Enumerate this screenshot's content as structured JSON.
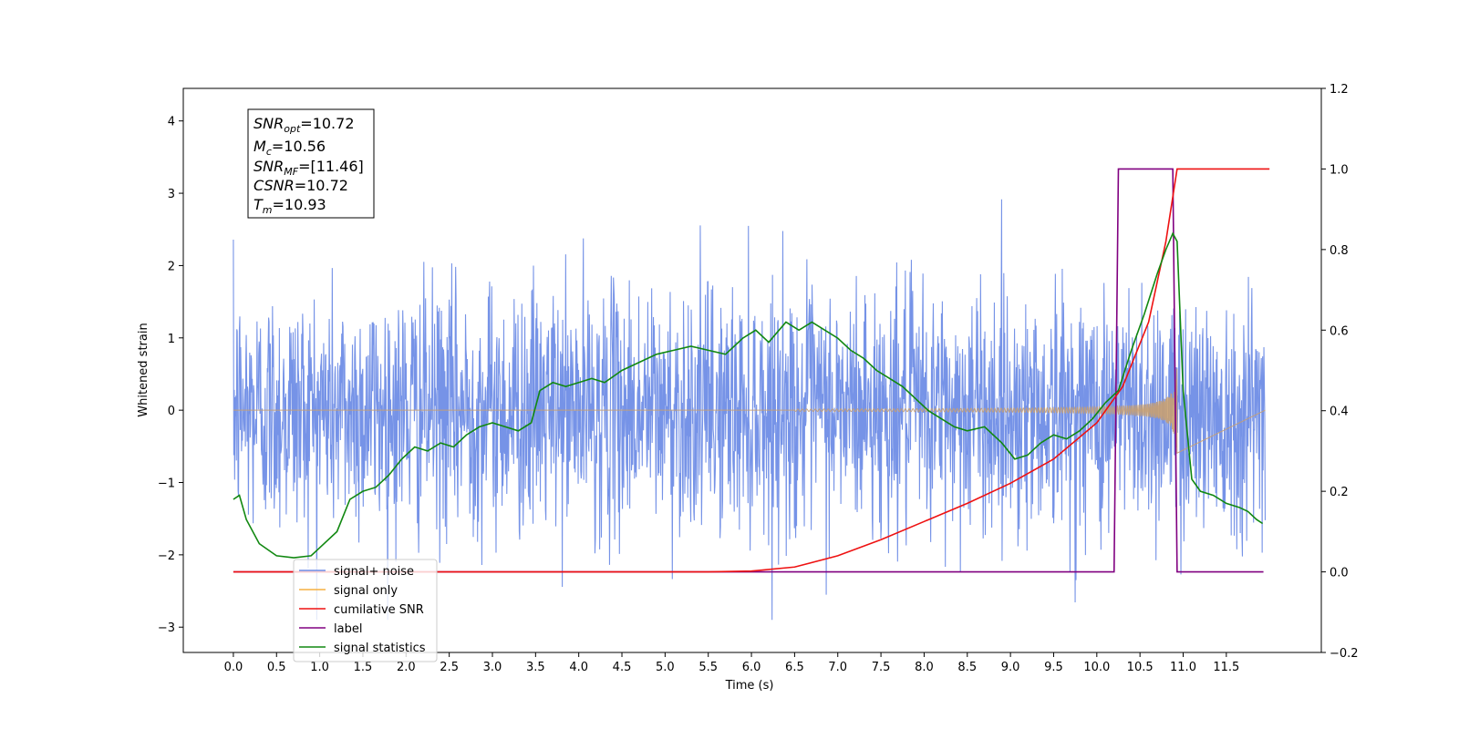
{
  "chart_data": {
    "type": "line",
    "xlabel": "Time (s)",
    "ylabel": "Whitened strain",
    "xlim": [
      -0.58,
      12.6
    ],
    "ylim_left": [
      -3.35,
      4.45
    ],
    "ylim_right": [
      -0.2,
      1.2
    ],
    "x_ticks": [
      "0.0",
      "0.5",
      "1.0",
      "1.5",
      "2.0",
      "2.5",
      "3.0",
      "3.5",
      "4.0",
      "4.5",
      "5.0",
      "5.5",
      "6.0",
      "6.5",
      "7.0",
      "7.5",
      "8.0",
      "8.5",
      "9.0",
      "9.5",
      "10.0",
      "10.5",
      "11.0",
      "11.5"
    ],
    "y_ticks_left": [
      "4",
      "3",
      "2",
      "1",
      "0",
      "−1",
      "−2",
      "−3"
    ],
    "y_ticks_right": [
      "1.2",
      "1.0",
      "0.8",
      "0.6",
      "0.4",
      "0.2",
      "0.0",
      "−0.2"
    ],
    "grid": false,
    "legend_position": "lower-left",
    "series": [
      {
        "name": "signal+ noise",
        "color": "#6f8de6",
        "axis": "left",
        "style": "noise band, amplitude approx ±2 to ±3.4"
      },
      {
        "name": "signal only",
        "color": "#f5b041",
        "axis": "left",
        "chirp_start": 6.5,
        "chirp_end": 10.93
      },
      {
        "name": "cumilative SNR",
        "color": "#ee1111",
        "axis": "right",
        "x": [
          0.0,
          5.5,
          6.0,
          6.5,
          7.0,
          7.5,
          8.0,
          8.5,
          9.0,
          9.5,
          10.0,
          10.3,
          10.6,
          10.8,
          10.93,
          11.0,
          11.5,
          12.0
        ],
        "y": [
          0.0,
          0.0,
          0.002,
          0.012,
          0.04,
          0.08,
          0.125,
          0.17,
          0.22,
          0.28,
          0.37,
          0.46,
          0.62,
          0.82,
          1.0,
          1.0,
          1.0,
          1.0
        ]
      },
      {
        "name": "label",
        "color": "#800080",
        "axis": "right",
        "x": [
          0.0,
          10.2,
          10.25,
          10.88,
          10.93,
          11.93
        ],
        "y": [
          0.0,
          0.0,
          1.0,
          1.0,
          0.0,
          0.0
        ]
      },
      {
        "name": "signal statistics",
        "color": "#118811",
        "axis": "right",
        "x": [
          0.0,
          0.07,
          0.15,
          0.3,
          0.5,
          0.7,
          0.9,
          1.0,
          1.2,
          1.35,
          1.5,
          1.65,
          1.8,
          1.95,
          2.1,
          2.25,
          2.4,
          2.55,
          2.7,
          2.85,
          3.0,
          3.15,
          3.3,
          3.45,
          3.55,
          3.7,
          3.85,
          4.0,
          4.15,
          4.3,
          4.5,
          4.7,
          4.9,
          5.1,
          5.3,
          5.5,
          5.7,
          5.9,
          6.05,
          6.2,
          6.4,
          6.55,
          6.7,
          6.85,
          7.0,
          7.15,
          7.3,
          7.45,
          7.6,
          7.75,
          7.9,
          8.05,
          8.2,
          8.35,
          8.5,
          8.7,
          8.9,
          9.05,
          9.2,
          9.35,
          9.5,
          9.65,
          9.8,
          9.95,
          10.1,
          10.25,
          10.4,
          10.55,
          10.7,
          10.8,
          10.88,
          10.93,
          11.0,
          11.1,
          11.2,
          11.35,
          11.5,
          11.65,
          11.75,
          11.85,
          11.92
        ],
        "y": [
          0.18,
          0.19,
          0.13,
          0.07,
          0.04,
          0.035,
          0.04,
          0.06,
          0.1,
          0.18,
          0.2,
          0.21,
          0.24,
          0.28,
          0.31,
          0.3,
          0.32,
          0.31,
          0.34,
          0.36,
          0.37,
          0.36,
          0.35,
          0.37,
          0.45,
          0.47,
          0.46,
          0.47,
          0.48,
          0.47,
          0.5,
          0.52,
          0.54,
          0.55,
          0.56,
          0.55,
          0.54,
          0.58,
          0.6,
          0.57,
          0.62,
          0.6,
          0.62,
          0.6,
          0.58,
          0.55,
          0.53,
          0.5,
          0.48,
          0.46,
          0.43,
          0.4,
          0.38,
          0.36,
          0.35,
          0.36,
          0.32,
          0.28,
          0.29,
          0.32,
          0.34,
          0.33,
          0.35,
          0.38,
          0.42,
          0.45,
          0.55,
          0.64,
          0.74,
          0.8,
          0.84,
          0.82,
          0.45,
          0.23,
          0.2,
          0.19,
          0.17,
          0.16,
          0.15,
          0.13,
          0.12
        ]
      },
      {
        "name": "signal only",
        "color": "#d3d3d3",
        "axis": "left",
        "hidden_behind_legend": true
      }
    ],
    "info_box": [
      {
        "main": "SNR",
        "sub": "opt",
        "rest": "=10.72"
      },
      {
        "main": "M",
        "sub": "c",
        "rest": "=10.56"
      },
      {
        "main": "SNR",
        "sub": "MF",
        "rest": "=[11.46]"
      },
      {
        "main": "CSNR",
        "sub": "",
        "rest": "=10.72"
      },
      {
        "main": "T",
        "sub": "m",
        "rest": "=10.93"
      }
    ],
    "legend": [
      "signal+ noise",
      "signal only",
      "cumilative SNR",
      "label",
      "signal statistics"
    ]
  }
}
